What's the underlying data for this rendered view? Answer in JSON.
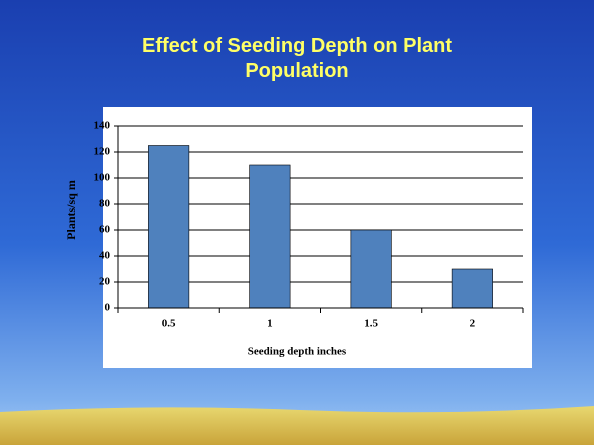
{
  "chart_data": {
    "type": "bar",
    "title": "Effect of Seeding Depth on Plant Population",
    "x_label": "Seeding depth inches",
    "y_label": "Plants/sq m",
    "categories": [
      "0.5",
      "1",
      "1.5",
      "2"
    ],
    "values": [
      125,
      110,
      60,
      30
    ],
    "color": "#4f81bd",
    "ylim": [
      0,
      140
    ],
    "yticks": [
      0,
      20,
      40,
      60,
      80,
      100,
      120,
      140
    ],
    "grid": true
  }
}
